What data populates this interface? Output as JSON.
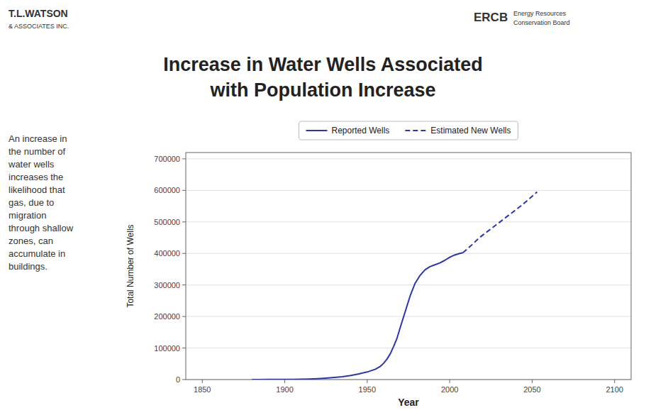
{
  "chart_data": {
    "type": "line",
    "title": "Increase in Water Wells Associated",
    "subtitle": "with Population Increase",
    "x_label": "Year",
    "y_label": "Total Number of Wells",
    "annotations": [
      "T.L.WATSON",
      "& ASSOCIATES INC.",
      "ERCB",
      "Energy Resources",
      "Conservation Board",
      "An increase in\nthe number of\nwater wells\nincreases the\nlikelihood that\ngas, due to\nmigration\nthrough shallow\nzones, can\naccumulate in\nbuildings."
    ],
    "xlim": [
      1840,
      2110
    ],
    "ylim": [
      0,
      720000
    ],
    "xticks": [
      1850,
      1900,
      1950,
      2000,
      2050,
      2100
    ],
    "yticks": [
      0,
      100000,
      200000,
      300000,
      400000,
      500000,
      600000,
      700000
    ],
    "grid": true,
    "legend": "top",
    "series": [
      {
        "name": "Reported Wells",
        "color": "#2B35AF",
        "line_style": "solid",
        "x": [
          1880,
          1885,
          1890,
          1895,
          1900,
          1905,
          1910,
          1915,
          1920,
          1925,
          1930,
          1935,
          1940,
          1945,
          1950,
          1955,
          1958,
          1960,
          1962,
          1964,
          1966,
          1968,
          1970,
          1973,
          1976,
          1979,
          1982,
          1985,
          1988,
          1991,
          1994,
          1997,
          2000,
          2003,
          2006,
          2008
        ],
        "values": [
          200,
          250,
          300,
          400,
          600,
          800,
          1100,
          1800,
          3000,
          4500,
          6500,
          9000,
          13000,
          18000,
          24000,
          33000,
          42000,
          52000,
          65000,
          82000,
          105000,
          130000,
          165000,
          215000,
          265000,
          305000,
          330000,
          348000,
          358000,
          364000,
          370000,
          378000,
          388000,
          395000,
          400000,
          402000
        ]
      },
      {
        "name": "Estimated New Wells",
        "color": "#2B35AF",
        "line_style": "dashed",
        "x": [
          2008,
          2013,
          2018,
          2023,
          2028,
          2033,
          2038,
          2043,
          2048,
          2053
        ],
        "values": [
          402000,
          425000,
          450000,
          470000,
          490000,
          510000,
          530000,
          550000,
          572000,
          595000
        ]
      }
    ]
  }
}
